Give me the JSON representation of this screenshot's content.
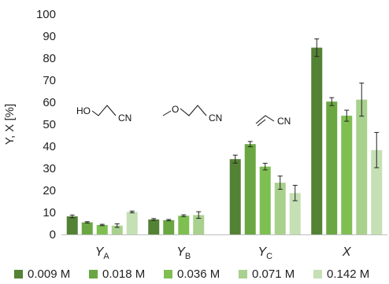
{
  "chart_data": {
    "type": "bar",
    "ylabel": "Y, X [%]",
    "ylim": [
      0,
      100
    ],
    "yticks": [
      0,
      10,
      20,
      30,
      40,
      50,
      60,
      70,
      80,
      90,
      100
    ],
    "grid": false,
    "legend_position": "bottom",
    "categories": [
      {
        "main": "Y",
        "sub": "A"
      },
      {
        "main": "Y",
        "sub": "B"
      },
      {
        "main": "Y",
        "sub": "C"
      },
      {
        "main": "X",
        "sub": ""
      }
    ],
    "series": [
      {
        "name": "0.009 M",
        "color": "#548235",
        "values": [
          8.2,
          6.8,
          34.2,
          84.8
        ],
        "errors": [
          0.6,
          0.4,
          1.8,
          4.0
        ]
      },
      {
        "name": "0.018 M",
        "color": "#6aa743",
        "values": [
          5.5,
          6.5,
          41.0,
          60.3
        ],
        "errors": [
          0.3,
          0.3,
          1.2,
          1.8
        ]
      },
      {
        "name": "0.036 M",
        "color": "#7fbf52",
        "values": [
          4.3,
          8.5,
          30.8,
          53.9
        ],
        "errors": [
          0.3,
          0.4,
          1.5,
          2.5
        ]
      },
      {
        "name": "0.071 M",
        "color": "#a9d18e",
        "values": [
          4.0,
          8.8,
          23.5,
          61.2
        ],
        "errors": [
          0.8,
          1.5,
          3.0,
          7.5
        ]
      },
      {
        "name": "0.142 M",
        "color": "#c5e0b4",
        "values": [
          10.2,
          null,
          18.8,
          38.3
        ],
        "errors": [
          0.4,
          null,
          3.5,
          8.0
        ]
      }
    ],
    "annotations": [
      {
        "left": "HO",
        "right": "CN"
      },
      {
        "left": "O",
        "right": "CN"
      },
      {
        "left": "",
        "right": "CN"
      }
    ]
  }
}
